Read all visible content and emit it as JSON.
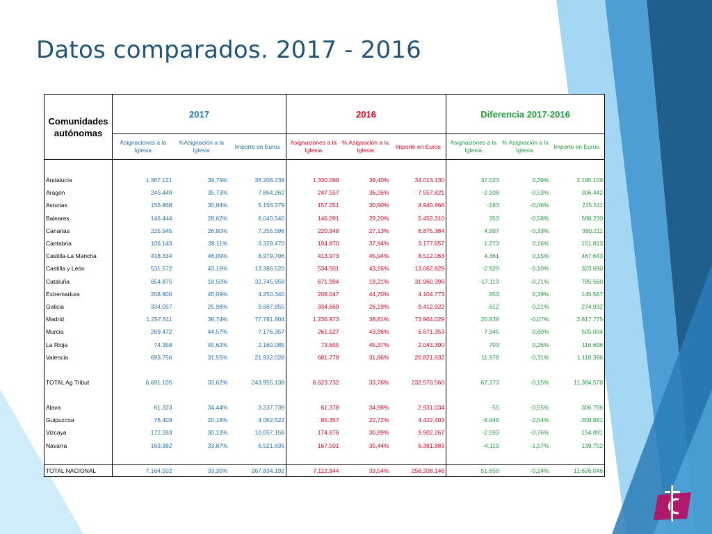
{
  "slide": {
    "title": "Datos comparados. 2017 - 2016"
  },
  "colors": {
    "title": "#1f5577",
    "year_2017": "#1f6fb5",
    "year_2016": "#e0001b",
    "difference": "#1f9e3a",
    "logo": "#b0186a"
  },
  "table": {
    "header": {
      "region": "Comunidades autónomas",
      "group_2017": "2017",
      "group_2016": "2016",
      "group_diff": "Diferencia 2017-2016"
    },
    "subheaders": {
      "y2017": [
        "Asignaciones a la Iglesia",
        "%Asignación a la Iglesia",
        "Importe en Euros"
      ],
      "y2016": [
        "Asignaciones a la Iglesia",
        "% Asignación a la Iglesia",
        "Importe en Euros"
      ],
      "diff": [
        "Asignaciones a la Iglesia",
        "% Asignación a la Iglesia.",
        "Importe en Euros."
      ]
    },
    "rows": [
      [
        "Andalucía",
        "1.367.121",
        "39,79%",
        "36.208.239",
        "1.330.098",
        "39,40%",
        "34.013.130",
        "37.023",
        "0,39%",
        "2.195.109"
      ],
      [
        "Aragón",
        "245.449",
        "35,73%",
        "7.864.262",
        "247.557",
        "36,26%",
        "7.557.821",
        "-2.108",
        "-0,53%",
        "306.442"
      ],
      [
        "Asturias",
        "156.868",
        "30,84%",
        "5.156.379",
        "157.051",
        "30,90%",
        "4.940.868",
        "-183",
        "-0,06%",
        "215.511"
      ],
      [
        "Baleares",
        "146.444",
        "28,62%",
        "6.040.540",
        "146.091",
        "29,20%",
        "5.452.310",
        "353",
        "-0,58%",
        "588.230"
      ],
      [
        "Canarias",
        "225.945",
        "26,80%",
        "7.255.596",
        "220.948",
        "27,13%",
        "6.875.384",
        "4.997",
        "-0,33%",
        "380.211"
      ],
      [
        "Cantabria",
        "106.143",
        "38,11%",
        "3.329.470",
        "104.870",
        "37,94%",
        "3.177.657",
        "1.273",
        "0,16%",
        "151.813"
      ],
      [
        "Castilla-La Mancha",
        "418.334",
        "46,09%",
        "8.979.706",
        "413.973",
        "45,94%",
        "8.512.063",
        "4.361",
        "0,15%",
        "467.643"
      ],
      [
        "Castilla y León",
        "531.572",
        "43,16%",
        "13.386.520",
        "534.501",
        "43,26%",
        "13.062.829",
        "-2.929",
        "-0,10%",
        "323.690"
      ],
      [
        "Cataluña",
        "654.875",
        "18,50%",
        "32.745.959",
        "671.994",
        "19,21%",
        "31.960.399",
        "-17.119",
        "-0,71%",
        "785.560"
      ],
      [
        "Extremadura",
        "208.900",
        "45,09%",
        "4.250.340",
        "208.047",
        "44,70%",
        "4.104.773",
        "853",
        "0,39%",
        "145.567"
      ],
      [
        "Galicia",
        "334.057",
        "25,98%",
        "9.687.855",
        "334.669",
        "26,19%",
        "9.412.922",
        "-612",
        "-0,21%",
        "274.932"
      ],
      [
        "Madrid",
        "1.257.811",
        "38,74%",
        "77.781.804",
        "1.236.973",
        "38,81%",
        "73.964.029",
        "20.838",
        "-0,07%",
        "3.817.775"
      ],
      [
        "Murcia",
        "269.472",
        "44,57%",
        "7.176.357",
        "261.527",
        "43,96%",
        "6.671.353",
        "7.945",
        "0,60%",
        "505.004"
      ],
      [
        "La Rioja",
        "74.358",
        "45,62%",
        "2.160.085",
        "73.655",
        "45,37%",
        "2.043.390",
        "703",
        "0,26%",
        "116.696"
      ],
      [
        "Valencia",
        "693.756",
        "31,55%",
        "21.932.028",
        "681.778",
        "31,86%",
        "20.821.632",
        "11.978",
        "-0,31%",
        "1.110.396"
      ]
    ],
    "total_ag_tribut": [
      "TOTAL Ag Tribut",
      "6.691.105",
      "33,62%",
      "243.955.138",
      "6.623.732",
      "33,76%",
      "232.570.560",
      "67.373",
      "-0,15%",
      "11.384.578"
    ],
    "foral_rows": [
      [
        "Alava",
        "61.323",
        "34,44%",
        "3.237.739",
        "61.378",
        "34,98%",
        "2.931.034",
        "-55",
        "-0,55%",
        "306.706"
      ],
      [
        "Guipuzcoa",
        "76.409",
        "20,18%",
        "4.062.522",
        "85.357",
        "22,72%",
        "4.422.403",
        "-8.948",
        "-2,54%",
        "-359.881"
      ],
      [
        "Vizcaya",
        "172.283",
        "30,13%",
        "10.057.158",
        "174.876",
        "30,89%",
        "9.902.267",
        "-2.593",
        "-0,76%",
        "154.891"
      ],
      [
        "Navarra",
        "163.382",
        "33,87%",
        "6.521.635",
        "167.501",
        "35,44%",
        "6.381.883",
        "-4.119",
        "-1,57%",
        "139.752"
      ]
    ],
    "total_nacional": [
      "TOTAL NACIONAL",
      "7.164.502",
      "33,30%",
      "267.834.192",
      "7.112.844",
      "33,54%",
      "256.208.146",
      "51.658",
      "-0,24%",
      "11.626.046"
    ]
  }
}
